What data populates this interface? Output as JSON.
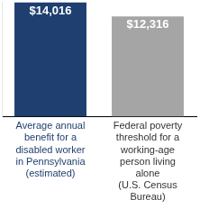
{
  "chart_data": {
    "type": "bar",
    "categories": [
      "Average annual benefit for a disabled worker in Pennsylvania (estimated)",
      "Federal poverty threshold for a working-age person living alone (U.S. Census Bureau)"
    ],
    "values": [
      14016,
      12316
    ],
    "value_labels": [
      "$14,016",
      "$12,316"
    ],
    "colors": [
      "#1e3f6f",
      "#a5a5a5"
    ],
    "ylim": [
      0,
      14100
    ],
    "grid": false,
    "data_labels": true,
    "tick_labels": false
  }
}
